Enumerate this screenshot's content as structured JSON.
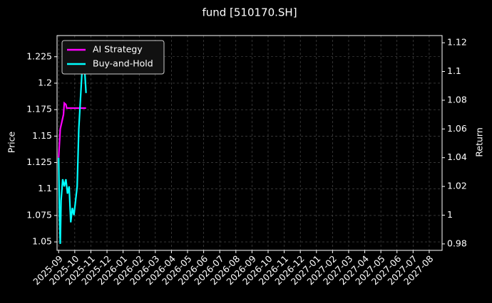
{
  "chart_data": {
    "type": "line",
    "title": "fund [510170.SH]",
    "ylabel": "Price",
    "y2label": "Return",
    "ylim": [
      1.042,
      1.245
    ],
    "yticks": [
      1.05,
      1.075,
      1.1,
      1.125,
      1.15,
      1.175,
      1.2,
      1.225
    ],
    "y2lim": [
      0.9755,
      1.125
    ],
    "y2ticks": [
      0.98,
      1.0,
      1.02,
      1.04,
      1.06,
      1.08,
      1.1,
      1.12
    ],
    "xlim": [
      -0.1,
      23.8
    ],
    "xticks": [
      {
        "value": 0,
        "label": "2025-09"
      },
      {
        "value": 1,
        "label": "2025-10"
      },
      {
        "value": 2,
        "label": "2025-11"
      },
      {
        "value": 3,
        "label": "2025-12"
      },
      {
        "value": 4,
        "label": "2026-01"
      },
      {
        "value": 5,
        "label": "2026-02"
      },
      {
        "value": 6,
        "label": "2026-03"
      },
      {
        "value": 7,
        "label": "2026-04"
      },
      {
        "value": 8,
        "label": "2026-05"
      },
      {
        "value": 9,
        "label": "2026-06"
      },
      {
        "value": 10,
        "label": "2026-07"
      },
      {
        "value": 11,
        "label": "2026-08"
      },
      {
        "value": 12,
        "label": "2026-09"
      },
      {
        "value": 13,
        "label": "2026-10"
      },
      {
        "value": 14,
        "label": "2026-11"
      },
      {
        "value": 15,
        "label": "2026-12"
      },
      {
        "value": 16,
        "label": "2027-01"
      },
      {
        "value": 17,
        "label": "2027-02"
      },
      {
        "value": 18,
        "label": "2027-03"
      },
      {
        "value": 19,
        "label": "2027-04"
      },
      {
        "value": 20,
        "label": "2027-05"
      },
      {
        "value": 21,
        "label": "2027-06"
      },
      {
        "value": 22,
        "label": "2027-07"
      },
      {
        "value": 23,
        "label": "2027-08"
      }
    ],
    "grid": true,
    "legend": "upper left",
    "series": [
      {
        "name": "AI Strategy",
        "color": "#ff00ff",
        "axis": "y2",
        "x": [
          0,
          0.05,
          0.1,
          0.2,
          0.3,
          0.35,
          0.45,
          0.5,
          1.0,
          1.7
        ],
        "values": [
          1.04,
          1.05,
          1.06,
          1.065,
          1.07,
          1.078,
          1.077,
          1.0745,
          1.0745,
          1.0745
        ]
      },
      {
        "name": "Buy-and-Hold",
        "color": "#00ffff",
        "axis": "y2",
        "x": [
          0,
          0.05,
          0.1,
          0.15,
          0.25,
          0.35,
          0.45,
          0.55,
          0.65,
          0.75,
          0.85,
          0.95,
          1.05,
          1.15,
          1.25,
          1.35,
          1.45,
          1.55,
          1.62,
          1.7
        ],
        "values": [
          1.04,
          1.0,
          0.98,
          1.01,
          1.025,
          1.02,
          1.025,
          1.015,
          1.02,
          0.995,
          1.005,
          1.0,
          1.01,
          1.02,
          1.06,
          1.08,
          1.1,
          1.11,
          1.1,
          1.085
        ]
      }
    ]
  }
}
